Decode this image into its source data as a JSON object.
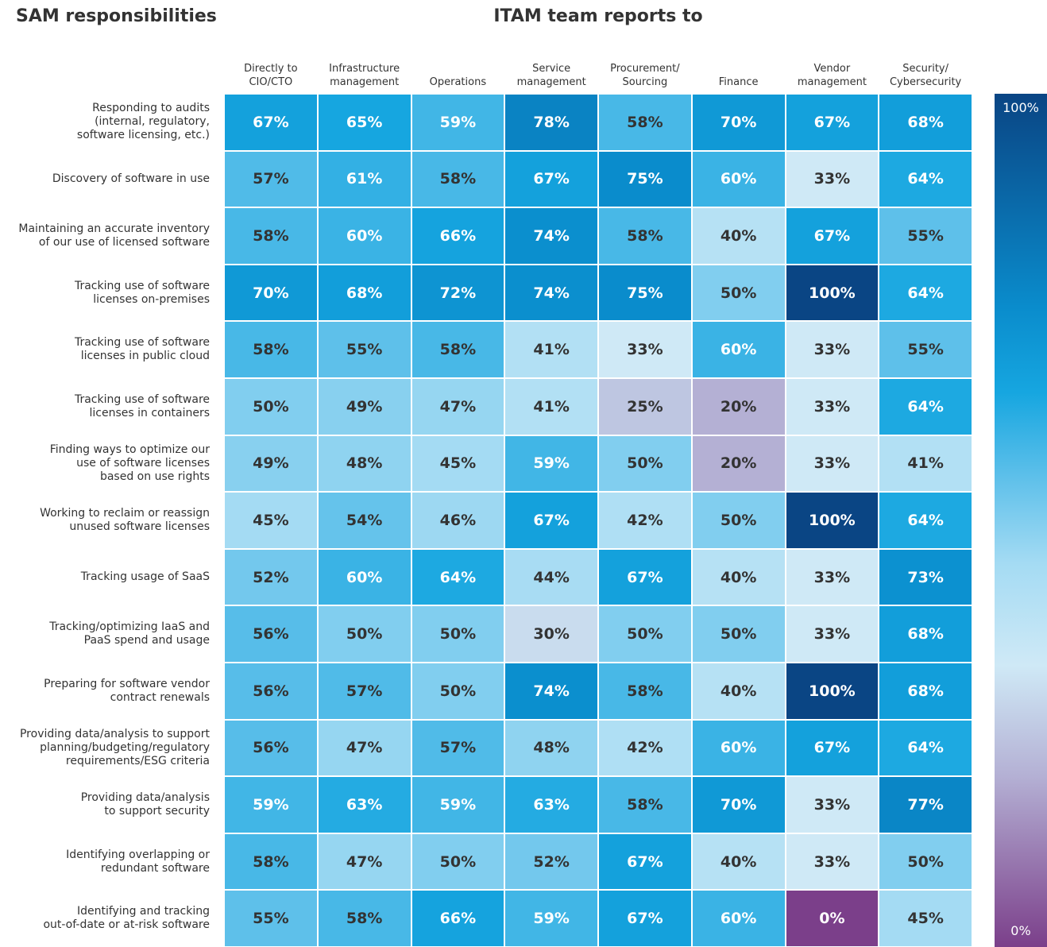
{
  "chart_data": {
    "type": "heatmap",
    "title": "SAM responsibilities",
    "subtitle": "ITAM team reports to",
    "columns": [
      "Directly to\nCIO/CTO",
      "Infrastructure\nmanagement",
      "Operations",
      "Service\nmanagement",
      "Procurement/\nSourcing",
      "Finance",
      "Vendor\nmanagement",
      "Security/\nCybersecurity"
    ],
    "rows": [
      "Responding to audits\n(internal, regulatory,\nsoftware licensing, etc.)",
      "Discovery of software in use",
      "Maintaining an accurate inventory\nof our use of licensed software",
      "Tracking use of software\nlicenses on-premises",
      "Tracking use of software\nlicenses in public cloud",
      "Tracking use of software\nlicenses in containers",
      "Finding ways to optimize our\nuse of software licenses\nbased on use rights",
      "Working to reclaim or reassign\nunused software licenses",
      "Tracking usage of SaaS",
      "Tracking/optimizing IaaS and\nPaaS spend and usage",
      "Preparing for software vendor\ncontract renewals",
      "Providing data/analysis to support\nplanning/budgeting/regulatory\nrequirements/ESG criteria",
      "Providing data/analysis\nto support security",
      "Identifying overlapping or\nredundant software",
      "Identifying and tracking\nout-of-date or at-risk software"
    ],
    "values": [
      [
        67,
        65,
        59,
        78,
        58,
        70,
        67,
        68
      ],
      [
        57,
        61,
        58,
        67,
        75,
        60,
        33,
        64
      ],
      [
        58,
        60,
        66,
        74,
        58,
        40,
        67,
        55
      ],
      [
        70,
        68,
        72,
        74,
        75,
        50,
        100,
        64
      ],
      [
        58,
        55,
        58,
        41,
        33,
        60,
        33,
        55
      ],
      [
        50,
        49,
        47,
        41,
        25,
        20,
        33,
        64
      ],
      [
        49,
        48,
        45,
        59,
        50,
        20,
        33,
        41
      ],
      [
        45,
        54,
        46,
        67,
        42,
        50,
        100,
        64
      ],
      [
        52,
        60,
        64,
        44,
        67,
        40,
        33,
        73
      ],
      [
        56,
        50,
        50,
        30,
        50,
        50,
        33,
        68
      ],
      [
        56,
        57,
        50,
        74,
        58,
        40,
        100,
        68
      ],
      [
        56,
        47,
        57,
        48,
        42,
        60,
        67,
        64
      ],
      [
        59,
        63,
        59,
        63,
        58,
        70,
        33,
        77
      ],
      [
        58,
        47,
        50,
        52,
        67,
        40,
        33,
        50
      ],
      [
        55,
        58,
        66,
        59,
        67,
        60,
        0,
        45
      ]
    ],
    "value_labels": [
      [
        "67%",
        "65%",
        "59%",
        "78%",
        "58%",
        "70%",
        "67%",
        "68%"
      ],
      [
        "57%",
        "61%",
        "58%",
        "67%",
        "75%",
        "60%",
        "33%",
        "64%"
      ],
      [
        "58%",
        "60%",
        "66%",
        "74%",
        "58%",
        "40%",
        "67%",
        "55%"
      ],
      [
        "70%",
        "68%",
        "72%",
        "74%",
        "75%",
        "50%",
        "100%",
        "64%"
      ],
      [
        "58%",
        "55%",
        "58%",
        "41%",
        "33%",
        "60%",
        "33%",
        "55%"
      ],
      [
        "50%",
        "49%",
        "47%",
        "41%",
        "25%",
        "20%",
        "33%",
        "64%"
      ],
      [
        "49%",
        "48%",
        "45%",
        "59%",
        "50%",
        "20%",
        "33%",
        "41%"
      ],
      [
        "45%",
        "54%",
        "46%",
        "67%",
        "42%",
        "50%",
        "100%",
        "64%"
      ],
      [
        "52%",
        "60%",
        "64%",
        "44%",
        "67%",
        "40%",
        "33%",
        "73%"
      ],
      [
        "56%",
        "50%",
        "50%",
        "30%",
        "50%",
        "50%",
        "33%",
        "68%"
      ],
      [
        "56%",
        "57%",
        "50%",
        "74%",
        "58%",
        "40%",
        "100%",
        "68%"
      ],
      [
        "56%",
        "47%",
        "57%",
        "48%",
        "42%",
        "60%",
        "67%",
        "64%"
      ],
      [
        "59%",
        "63%",
        "59%",
        "63%",
        "58%",
        "70%",
        "33%",
        "77%"
      ],
      [
        "58%",
        "47%",
        "50%",
        "52%",
        "67%",
        "40%",
        "33%",
        "50%"
      ],
      [
        "55%",
        "58%",
        "66%",
        "59%",
        "67%",
        "60%",
        "0%",
        "45%"
      ]
    ],
    "zlim": [
      0,
      100
    ],
    "zticks": [
      {
        "value": 100,
        "label": "100%"
      },
      {
        "value": 0,
        "label": "0%"
      }
    ],
    "colorscale": [
      [
        0,
        "#7b3f8a"
      ],
      [
        20,
        "#b4b0d4"
      ],
      [
        33,
        "#cfe9f6"
      ],
      [
        45,
        "#a4dbf3"
      ],
      [
        55,
        "#5ec0ea"
      ],
      [
        65,
        "#16a6e0"
      ],
      [
        75,
        "#0a8ccc"
      ],
      [
        100,
        "#0a4584"
      ]
    ]
  }
}
